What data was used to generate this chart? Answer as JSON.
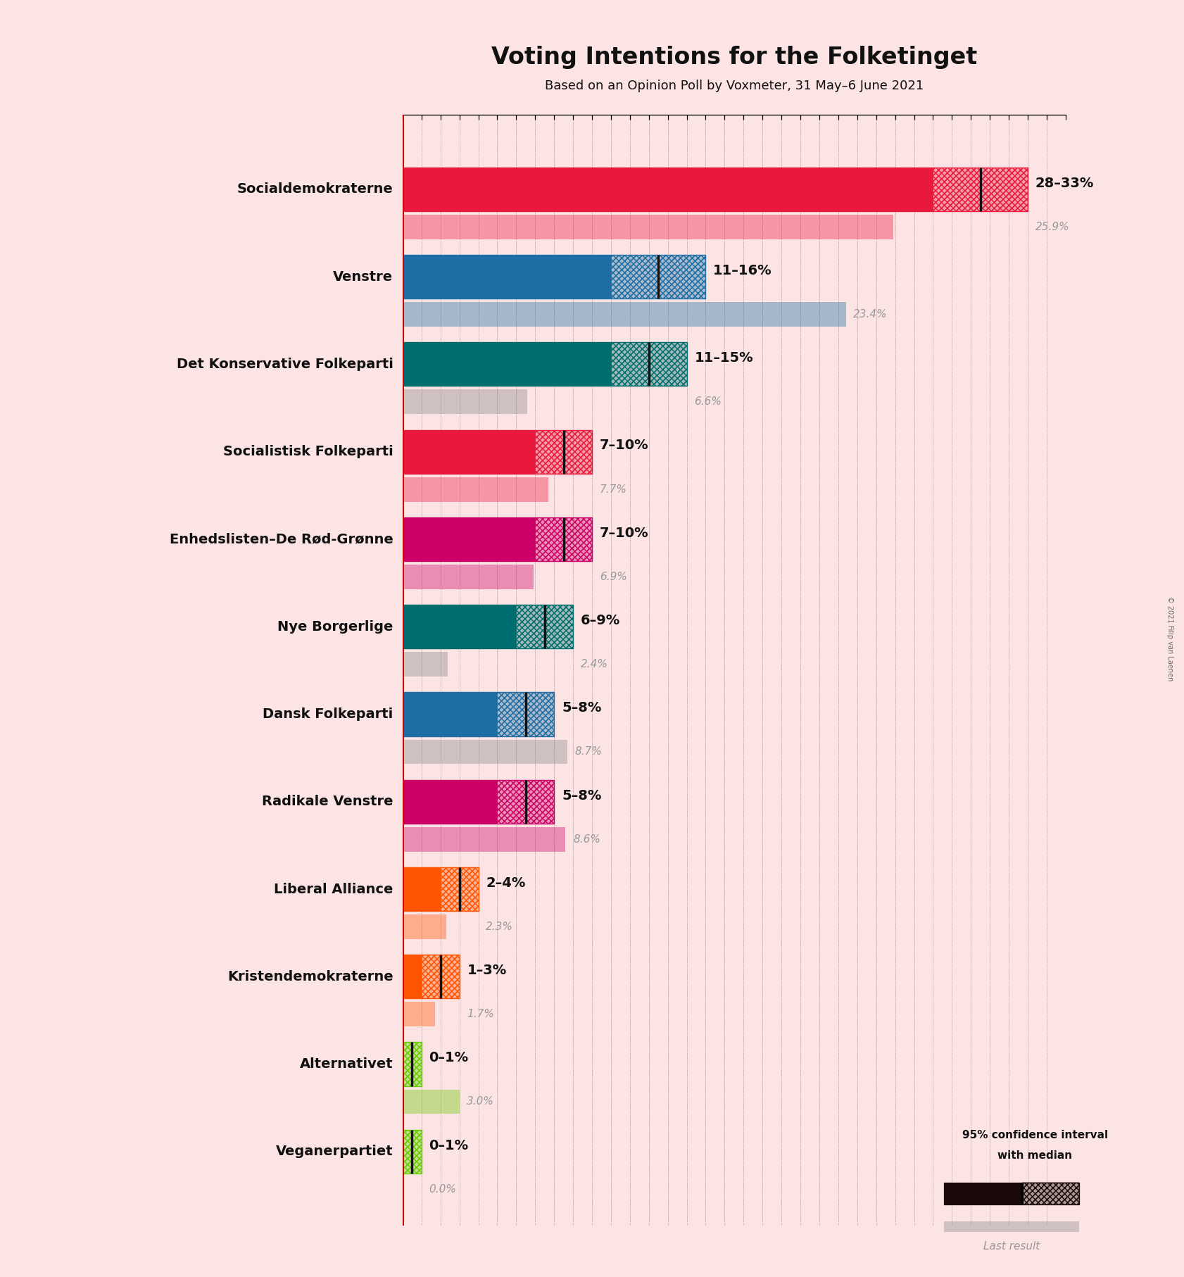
{
  "title": "Voting Intentions for the Folketinget",
  "subtitle": "Based on an Opinion Poll by Voxmeter, 31 May–6 June 2021",
  "copyright": "© 2021 Filip van Laenen",
  "background_color": "#fce4e4",
  "parties": [
    "Socialdemokraterne",
    "Venstre",
    "Det Konservative Folkeparti",
    "Socialistisk Folkeparti",
    "Enhedslisten–De Rød-Grønne",
    "Nye Borgerlige",
    "Dansk Folkeparti",
    "Radikale Venstre",
    "Liberal Alliance",
    "Kristendemokraterne",
    "Alternativet",
    "Veganerpartiet"
  ],
  "low": [
    28,
    11,
    11,
    7,
    7,
    6,
    5,
    5,
    2,
    1,
    0,
    0
  ],
  "high": [
    33,
    16,
    15,
    10,
    10,
    9,
    8,
    8,
    4,
    3,
    1,
    1
  ],
  "median": [
    30.5,
    13.5,
    13.0,
    8.5,
    8.5,
    7.5,
    6.5,
    6.5,
    3.0,
    2.0,
    0.5,
    0.5
  ],
  "last_result": [
    25.9,
    23.4,
    6.6,
    7.7,
    6.9,
    2.4,
    8.7,
    8.6,
    2.3,
    1.7,
    3.0,
    0.0
  ],
  "range_labels": [
    "28–33%",
    "11–16%",
    "11–15%",
    "7–10%",
    "7–10%",
    "6–9%",
    "5–8%",
    "5–8%",
    "2–4%",
    "1–3%",
    "0–1%",
    "0–1%"
  ],
  "colors": [
    "#e8193c",
    "#1c6ea4",
    "#006e6e",
    "#e8193c",
    "#cc0066",
    "#006e6e",
    "#1c6ea4",
    "#cc0066",
    "#ff5500",
    "#ff5500",
    "#66cc00",
    "#66cc00"
  ],
  "last_result_colors": [
    "#e8193c",
    "#1c6ea4",
    "#888888",
    "#e8193c",
    "#cc0066",
    "#888888",
    "#888888",
    "#cc0066",
    "#ff5500",
    "#ff5500",
    "#66cc00",
    "#66cc00"
  ],
  "xlim_max": 35,
  "bar_height": 0.5,
  "last_bar_height": 0.28,
  "label_fontsize": 14,
  "title_fontsize": 24,
  "subtitle_fontsize": 13
}
